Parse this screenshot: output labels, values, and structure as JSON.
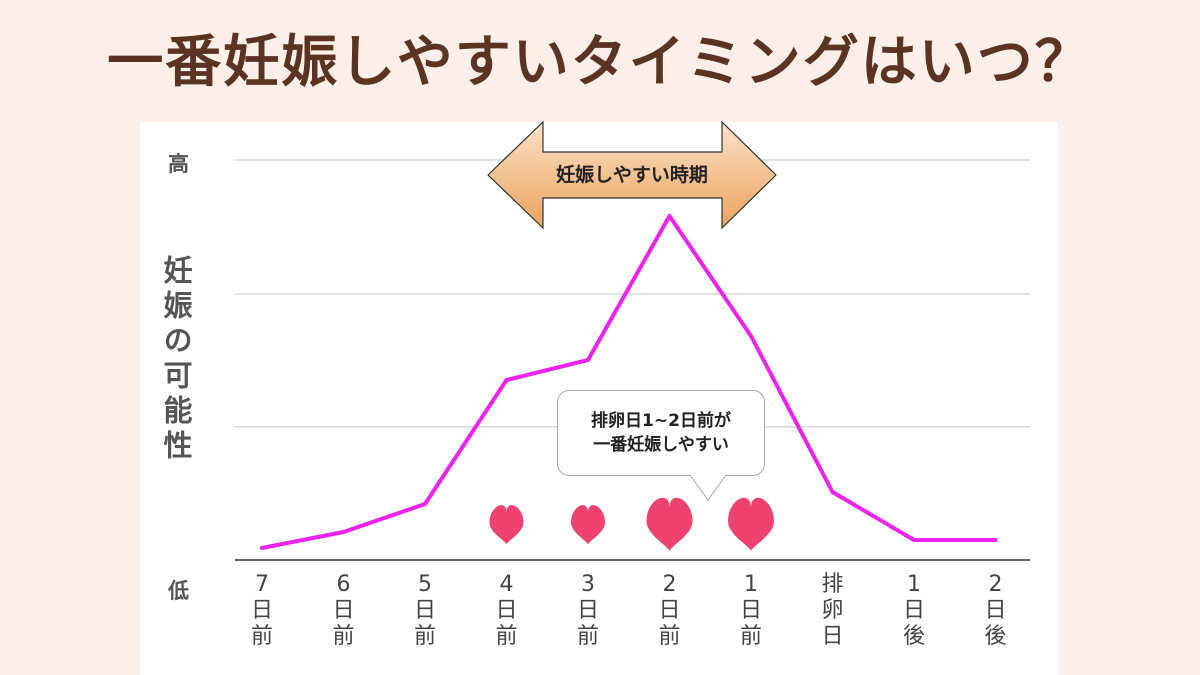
{
  "header": {
    "title": "一番妊娠しやすいタイミングはいつ？"
  },
  "chart_data": {
    "type": "line",
    "title": "",
    "ylabel": "妊娠の可能性",
    "y_high_label": "高",
    "y_low_label": "低",
    "ylim": [
      0,
      100
    ],
    "categories": [
      [
        "7",
        "日",
        "前"
      ],
      [
        "6",
        "日",
        "前"
      ],
      [
        "5",
        "日",
        "前"
      ],
      [
        "4",
        "日",
        "前"
      ],
      [
        "3",
        "日",
        "前"
      ],
      [
        "2",
        "日",
        "前"
      ],
      [
        "1",
        "日",
        "前"
      ],
      [
        "排",
        "卵",
        "日"
      ],
      [
        "1",
        "日",
        "後"
      ],
      [
        "2",
        "日",
        "後"
      ]
    ],
    "values": [
      3,
      7,
      14,
      45,
      50,
      86,
      56,
      17,
      5,
      5
    ],
    "line_color": "#ee22ee",
    "grid": true,
    "heart_color": "#f0426e",
    "hearts": [
      {
        "category_index": 3,
        "size": "small"
      },
      {
        "category_index": 4,
        "size": "small"
      },
      {
        "category_index": 5,
        "size": "large"
      },
      {
        "category_index": 6,
        "size": "large"
      }
    ],
    "annotations": {
      "arrow_label": "妊娠しやすい時期",
      "callout_line1": "排卵日1~2日前が",
      "callout_line2": "一番妊娠しやすい"
    }
  }
}
